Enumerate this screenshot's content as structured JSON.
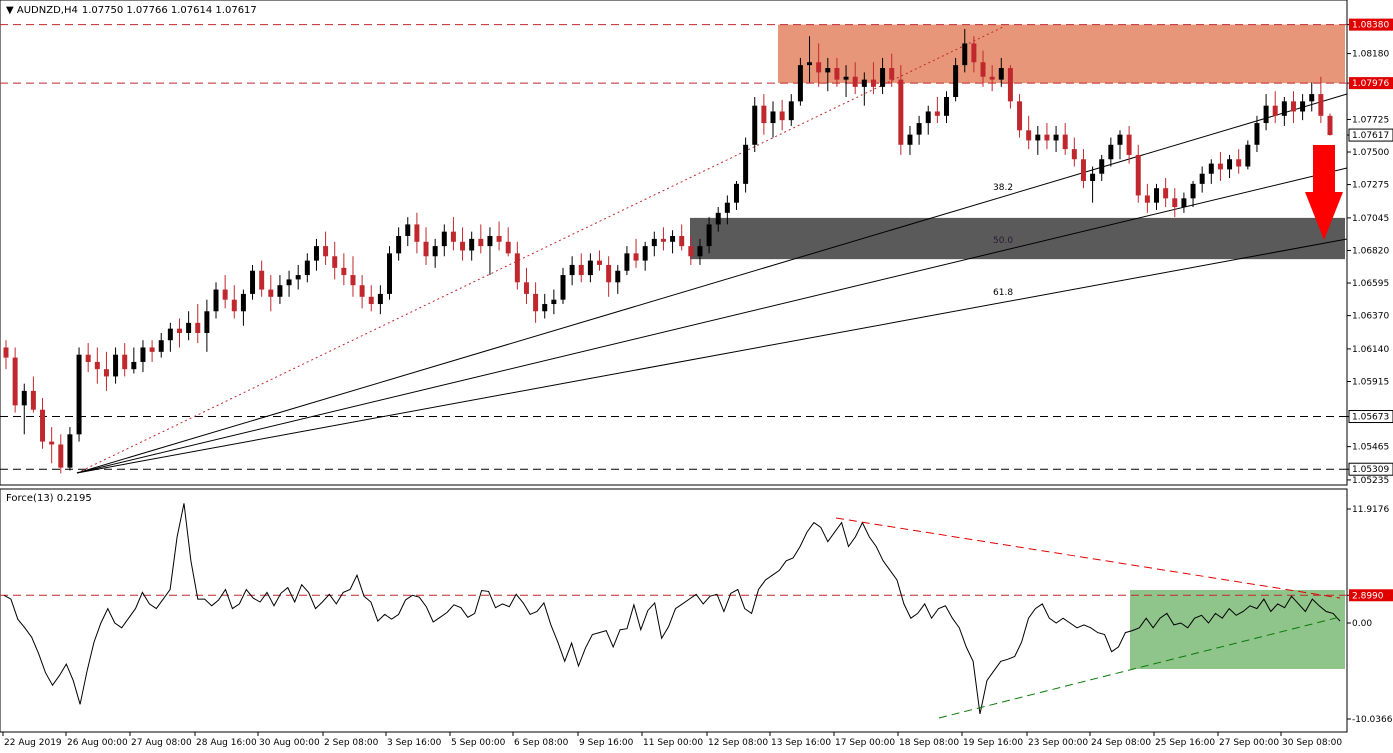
{
  "header": {
    "symbol": "AUDNZD,H4",
    "ohlc": "1.07750 1.07766 1.07614 1.07617"
  },
  "indicator": {
    "label": "Force(13) 0.2195",
    "scale_max": "11.9176",
    "level": "2.8990",
    "zero": "0.00",
    "scale_min": "-10.0366"
  },
  "colors": {
    "bull_candle": "#000000",
    "bear_candle": "#c0282d",
    "resistance_zone": "#e8967a",
    "support_zone": "#5a5a5a",
    "force_zone": "#8fc48a",
    "arrow": "#ff0000",
    "price_tag": "#e00000"
  },
  "chart_data": [
    {
      "type": "candlestick",
      "title": "AUDNZD,H4",
      "ylim": [
        1.052,
        1.0855
      ],
      "y_ticks": [
        "1.08380",
        "1.08180",
        "1.07976",
        "1.07725",
        "1.07617",
        "1.07500",
        "1.07275",
        "1.07045",
        "1.06820",
        "1.06595",
        "1.06370",
        "1.06140",
        "1.05915",
        "1.05673",
        "1.05465",
        "1.05309",
        "1.05235"
      ],
      "x_ticks": [
        "22 Aug 2019",
        "26 Aug 00:00",
        "27 Aug 08:00",
        "28 Aug 16:00",
        "30 Aug 00:00",
        "2 Sep 08:00",
        "3 Sep 16:00",
        "5 Sep 00:00",
        "6 Sep 08:00",
        "9 Sep 16:00",
        "11 Sep 00:00",
        "12 Sep 08:00",
        "13 Sep 16:00",
        "17 Sep 00:00",
        "18 Sep 08:00",
        "19 Sep 16:00",
        "23 Sep 00:00",
        "24 Sep 08:00",
        "25 Sep 16:00",
        "27 Sep 00:00",
        "30 Sep 08:00"
      ],
      "horizontal_levels": [
        {
          "value": 1.0838,
          "label": "1.08380",
          "color": "#c0282d",
          "tag": true
        },
        {
          "value": 1.07976,
          "label": "1.07976",
          "color": "#c0282d",
          "tag": true
        },
        {
          "value": 1.05673,
          "label": "1.05673",
          "color": "#000000",
          "tag": false
        },
        {
          "value": 1.05309,
          "label": "1.05309",
          "color": "#000000",
          "tag": false
        }
      ],
      "current_price": "1.07617",
      "resistance_zone": [
        1.07976,
        1.0838
      ],
      "support_zone": [
        1.0676,
        1.07045
      ],
      "fan_labels": [
        "38.2",
        "50.0",
        "61.8"
      ],
      "candles_ohlc": [
        [
          1.0615,
          1.062,
          1.06,
          1.0608
        ],
        [
          1.0608,
          1.0615,
          1.057,
          1.0575
        ],
        [
          1.0575,
          1.059,
          1.0555,
          1.0585
        ],
        [
          1.0585,
          1.0595,
          1.057,
          1.0572
        ],
        [
          1.0572,
          1.058,
          1.0545,
          1.055
        ],
        [
          1.055,
          1.056,
          1.0535,
          1.0548
        ],
        [
          1.0548,
          1.0555,
          1.0528,
          1.0532
        ],
        [
          1.0532,
          1.056,
          1.053,
          1.0555
        ],
        [
          1.0555,
          1.0615,
          1.055,
          1.061
        ],
        [
          1.061,
          1.0618,
          1.0598,
          1.0605
        ],
        [
          1.0605,
          1.0615,
          1.059,
          1.06
        ],
        [
          1.06,
          1.0612,
          1.0585,
          1.0595
        ],
        [
          1.0595,
          1.0615,
          1.059,
          1.061
        ],
        [
          1.061,
          1.0618,
          1.0595,
          1.06
        ],
        [
          1.06,
          1.0615,
          1.0597,
          1.0605
        ],
        [
          1.0605,
          1.062,
          1.0598,
          1.0615
        ],
        [
          1.0615,
          1.062,
          1.0605,
          1.0612
        ],
        [
          1.0612,
          1.0625,
          1.0608,
          1.062
        ],
        [
          1.062,
          1.0632,
          1.0612,
          1.0628
        ],
        [
          1.0628,
          1.0635,
          1.0615,
          1.0625
        ],
        [
          1.0625,
          1.064,
          1.062,
          1.0632
        ],
        [
          1.0632,
          1.0645,
          1.0618,
          1.0625
        ],
        [
          1.0625,
          1.0648,
          1.0612,
          1.064
        ],
        [
          1.064,
          1.066,
          1.0635,
          1.0655
        ],
        [
          1.0655,
          1.0665,
          1.0642,
          1.0648
        ],
        [
          1.0648,
          1.0658,
          1.0635,
          1.064
        ],
        [
          1.064,
          1.0655,
          1.063,
          1.0652
        ],
        [
          1.0652,
          1.0672,
          1.0648,
          1.0668
        ],
        [
          1.0668,
          1.0675,
          1.065,
          1.0655
        ],
        [
          1.0655,
          1.0665,
          1.064,
          1.065
        ],
        [
          1.065,
          1.0665,
          1.0645,
          1.0658
        ],
        [
          1.0658,
          1.0668,
          1.065,
          1.0662
        ],
        [
          1.0662,
          1.0672,
          1.0655,
          1.0665
        ],
        [
          1.0665,
          1.068,
          1.066,
          1.0675
        ],
        [
          1.0675,
          1.069,
          1.0668,
          1.0685
        ],
        [
          1.0685,
          1.0695,
          1.0672,
          1.0678
        ],
        [
          1.0678,
          1.0688,
          1.0662,
          1.067
        ],
        [
          1.067,
          1.068,
          1.0658,
          1.0665
        ],
        [
          1.0665,
          1.0678,
          1.065,
          1.0658
        ],
        [
          1.0658,
          1.0665,
          1.0642,
          1.065
        ],
        [
          1.065,
          1.0658,
          1.064,
          1.0645
        ],
        [
          1.0645,
          1.0658,
          1.0638,
          1.0652
        ],
        [
          1.0652,
          1.0685,
          1.0648,
          1.068
        ],
        [
          1.068,
          1.0698,
          1.0675,
          1.0692
        ],
        [
          1.0692,
          1.0705,
          1.0685,
          1.07
        ],
        [
          1.07,
          1.0708,
          1.068,
          1.0688
        ],
        [
          1.0688,
          1.0698,
          1.0672,
          1.0678
        ],
        [
          1.0678,
          1.069,
          1.067,
          1.0685
        ],
        [
          1.0685,
          1.07,
          1.0678,
          1.0695
        ],
        [
          1.0695,
          1.0705,
          1.0682,
          1.0688
        ],
        [
          1.0688,
          1.0698,
          1.0675,
          1.0682
        ],
        [
          1.0682,
          1.0695,
          1.0675,
          1.069
        ],
        [
          1.069,
          1.07,
          1.068,
          1.0685
        ],
        [
          1.0685,
          1.0698,
          1.0665,
          1.0692
        ],
        [
          1.0692,
          1.0702,
          1.0682,
          1.0688
        ],
        [
          1.0688,
          1.0698,
          1.0678,
          1.068
        ],
        [
          1.068,
          1.0688,
          1.0655,
          1.066
        ],
        [
          1.066,
          1.067,
          1.0645,
          1.0652
        ],
        [
          1.0652,
          1.066,
          1.0632,
          1.064
        ],
        [
          1.064,
          1.0652,
          1.0635,
          1.0645
        ],
        [
          1.0645,
          1.0655,
          1.0638,
          1.0648
        ],
        [
          1.0648,
          1.067,
          1.0645,
          1.0665
        ],
        [
          1.0665,
          1.0678,
          1.0658,
          1.0672
        ],
        [
          1.0672,
          1.068,
          1.066,
          1.0665
        ],
        [
          1.0665,
          1.068,
          1.066,
          1.0675
        ],
        [
          1.0675,
          1.0682,
          1.0668,
          1.0672
        ],
        [
          1.0672,
          1.0678,
          1.065,
          1.066
        ],
        [
          1.066,
          1.0672,
          1.0652,
          1.0668
        ],
        [
          1.0668,
          1.0685,
          1.0665,
          1.068
        ],
        [
          1.068,
          1.069,
          1.067,
          1.0675
        ],
        [
          1.0675,
          1.0688,
          1.0668,
          1.0685
        ],
        [
          1.0685,
          1.0695,
          1.0678,
          1.069
        ],
        [
          1.069,
          1.0698,
          1.0682,
          1.0688
        ],
        [
          1.0688,
          1.0696,
          1.068,
          1.0692
        ],
        [
          1.0692,
          1.07,
          1.0682,
          1.0685
        ],
        [
          1.0685,
          1.0692,
          1.0672,
          1.0678
        ],
        [
          1.0678,
          1.069,
          1.0672,
          1.0685
        ],
        [
          1.0685,
          1.0705,
          1.068,
          1.07
        ],
        [
          1.07,
          1.0712,
          1.0695,
          1.0708
        ],
        [
          1.0708,
          1.072,
          1.07,
          1.0715
        ],
        [
          1.0715,
          1.073,
          1.071,
          1.0728
        ],
        [
          1.0728,
          1.076,
          1.0722,
          1.0755
        ],
        [
          1.0755,
          1.0788,
          1.075,
          1.0782
        ],
        [
          1.0782,
          1.079,
          1.0762,
          1.077
        ],
        [
          1.077,
          1.0785,
          1.076,
          1.0778
        ],
        [
          1.0778,
          1.0786,
          1.0765,
          1.0772
        ],
        [
          1.0772,
          1.079,
          1.0768,
          1.0785
        ],
        [
          1.0785,
          1.0815,
          1.0782,
          1.081
        ],
        [
          1.081,
          1.083,
          1.0798,
          1.0812
        ],
        [
          1.0812,
          1.0825,
          1.0795,
          1.0805
        ],
        [
          1.0805,
          1.0815,
          1.0792,
          1.0808
        ],
        [
          1.0808,
          1.0815,
          1.0795,
          1.08
        ],
        [
          1.08,
          1.081,
          1.0788,
          1.0802
        ],
        [
          1.0802,
          1.0812,
          1.079,
          1.0795
        ],
        [
          1.0795,
          1.0805,
          1.0782,
          1.08
        ],
        [
          1.08,
          1.0812,
          1.079,
          1.0795
        ],
        [
          1.0795,
          1.0815,
          1.079,
          1.0808
        ],
        [
          1.0808,
          1.0818,
          1.0795,
          1.08
        ],
        [
          1.08,
          1.081,
          1.0748,
          1.0755
        ],
        [
          1.0755,
          1.0768,
          1.0748,
          1.0762
        ],
        [
          1.0762,
          1.0775,
          1.0755,
          1.077
        ],
        [
          1.077,
          1.0782,
          1.0762,
          1.0778
        ],
        [
          1.0778,
          1.0788,
          1.077,
          1.0775
        ],
        [
          1.0775,
          1.0792,
          1.077,
          1.0788
        ],
        [
          1.0788,
          1.0815,
          1.0785,
          1.081
        ],
        [
          1.081,
          1.0835,
          1.0805,
          1.0825
        ],
        [
          1.0825,
          1.083,
          1.0805,
          1.0812
        ],
        [
          1.0812,
          1.082,
          1.0795,
          1.0802
        ],
        [
          1.0802,
          1.081,
          1.0792,
          1.08
        ],
        [
          1.08,
          1.0815,
          1.0795,
          1.0808
        ],
        [
          1.0808,
          1.081,
          1.078,
          1.0785
        ],
        [
          1.0785,
          1.079,
          1.076,
          1.0765
        ],
        [
          1.0765,
          1.0775,
          1.0752,
          1.0758
        ],
        [
          1.0758,
          1.0768,
          1.0748,
          1.0762
        ],
        [
          1.0762,
          1.077,
          1.0752,
          1.0758
        ],
        [
          1.0758,
          1.0768,
          1.075,
          1.0762
        ],
        [
          1.0762,
          1.077,
          1.0748,
          1.0752
        ],
        [
          1.0752,
          1.076,
          1.074,
          1.0745
        ],
        [
          1.0745,
          1.0752,
          1.0725,
          1.073
        ],
        [
          1.073,
          1.074,
          1.0715,
          1.0735
        ],
        [
          1.0735,
          1.0748,
          1.073,
          1.0745
        ],
        [
          1.0745,
          1.076,
          1.074,
          1.0755
        ],
        [
          1.0755,
          1.0765,
          1.0745,
          1.0762
        ],
        [
          1.0762,
          1.0768,
          1.0742,
          1.0748
        ],
        [
          1.0748,
          1.0755,
          1.0715,
          1.072
        ],
        [
          1.072,
          1.0728,
          1.0708,
          1.0715
        ],
        [
          1.0715,
          1.0728,
          1.071,
          1.0725
        ],
        [
          1.0725,
          1.0732,
          1.0712,
          1.0718
        ],
        [
          1.0718,
          1.0725,
          1.0705,
          1.0712
        ],
        [
          1.0712,
          1.0722,
          1.0708,
          1.0718
        ],
        [
          1.0718,
          1.073,
          1.0712,
          1.0728
        ],
        [
          1.0728,
          1.074,
          1.0722,
          1.0735
        ],
        [
          1.0735,
          1.0745,
          1.0728,
          1.0742
        ],
        [
          1.0742,
          1.075,
          1.073,
          1.0738
        ],
        [
          1.0738,
          1.0748,
          1.0732,
          1.0745
        ],
        [
          1.0745,
          1.0752,
          1.0735,
          1.074
        ],
        [
          1.074,
          1.0758,
          1.0738,
          1.0755
        ],
        [
          1.0755,
          1.0775,
          1.075,
          1.077
        ],
        [
          1.077,
          1.079,
          1.0765,
          1.0782
        ],
        [
          1.0782,
          1.0792,
          1.077,
          1.0775
        ],
        [
          1.0775,
          1.0788,
          1.0768,
          1.0785
        ],
        [
          1.0785,
          1.0792,
          1.077,
          1.0778
        ],
        [
          1.0778,
          1.079,
          1.0772,
          1.0785
        ],
        [
          1.0785,
          1.0798,
          1.0778,
          1.079
        ],
        [
          1.079,
          1.0802,
          1.077,
          1.0775
        ],
        [
          1.0775,
          1.07766,
          1.07614,
          1.07617
        ]
      ]
    },
    {
      "type": "line",
      "title": "Force(13) 0.2195",
      "ylim": [
        -10.0366,
        11.9176
      ],
      "y_ticks": [
        "11.9176",
        "2.8990",
        "0.00",
        "-10.0366"
      ],
      "horizontal_levels": [
        {
          "value": 2.899,
          "label": "2.8990",
          "color": "#c0282d"
        }
      ],
      "series": [
        {
          "values": [
            2.9,
            2.5,
            0.4,
            -0.5,
            -1.5,
            -3.2,
            -5.2,
            -6.5,
            -5.5,
            -4.3,
            -6.0,
            -8.5,
            -5.0,
            -2.0,
            0.0,
            1.5,
            0.0,
            -0.5,
            0.5,
            1.5,
            3.2,
            2.0,
            1.5,
            2.5,
            3.5,
            9.0,
            12.5,
            6.5,
            2.5,
            2.5,
            1.8,
            2.4,
            3.5,
            1.5,
            2.0,
            3.5,
            2.6,
            2.2,
            3.2,
            1.8,
            3.1,
            3.7,
            2.2,
            4.0,
            3.2,
            1.5,
            2.2,
            3.0,
            2.0,
            3.2,
            3.5,
            5.0,
            2.8,
            2.2,
            0.2,
            0.9,
            0.4,
            0.9,
            2.4,
            2.9,
            2.7,
            1.7,
            0.1,
            0.6,
            1.1,
            1.9,
            1.6,
            0.6,
            1.0,
            3.4,
            3.3,
            1.6,
            2.0,
            1.7,
            3.0,
            2.1,
            0.9,
            1.2,
            2.1,
            -0.2,
            -2.0,
            -4.0,
            -2.1,
            -4.5,
            -2.6,
            -1.2,
            -1.0,
            -0.8,
            -2.5,
            -0.7,
            -0.6,
            1.9,
            -0.7,
            1.3,
            2.1,
            -1.6,
            -0.4,
            1.5,
            2.0,
            2.5,
            3.0,
            2.0,
            2.8,
            3.0,
            1.2,
            3.1,
            3.5,
            1.5,
            1.0,
            3.5,
            4.5,
            5.0,
            5.5,
            6.5,
            6.8,
            8.0,
            9.5,
            10.5,
            10.0,
            8.5,
            9.5,
            10.5,
            8.0,
            9.0,
            10.5,
            9.0,
            8.0,
            6.5,
            5.5,
            4.5,
            2.0,
            0.5,
            1.0,
            2.0,
            0.5,
            1.5,
            1.8,
            0.5,
            -0.5,
            -2.5,
            -4.0,
            -9.5,
            -6.0,
            -5.0,
            -4.0,
            -3.8,
            -3.5,
            -2.0,
            0.5,
            1.5,
            2.0,
            0.5,
            0.0,
            0.5,
            0.0,
            -0.5,
            -0.2,
            -0.5,
            -1.0,
            -1.2,
            -3.0,
            -2.5,
            -1.0,
            -0.8,
            -0.5,
            0.5,
            -0.5,
            0.5,
            1.0,
            -0.2,
            0.0,
            -0.5,
            0.5,
            0.8,
            0.0,
            1.0,
            0.5,
            1.5,
            0.8,
            1.2,
            1.8,
            1.5,
            2.5,
            1.2,
            2.0,
            1.6,
            2.8,
            2.0,
            1.2,
            2.5,
            1.8,
            1.2,
            1.0,
            0.2
          ]
        }
      ]
    }
  ]
}
